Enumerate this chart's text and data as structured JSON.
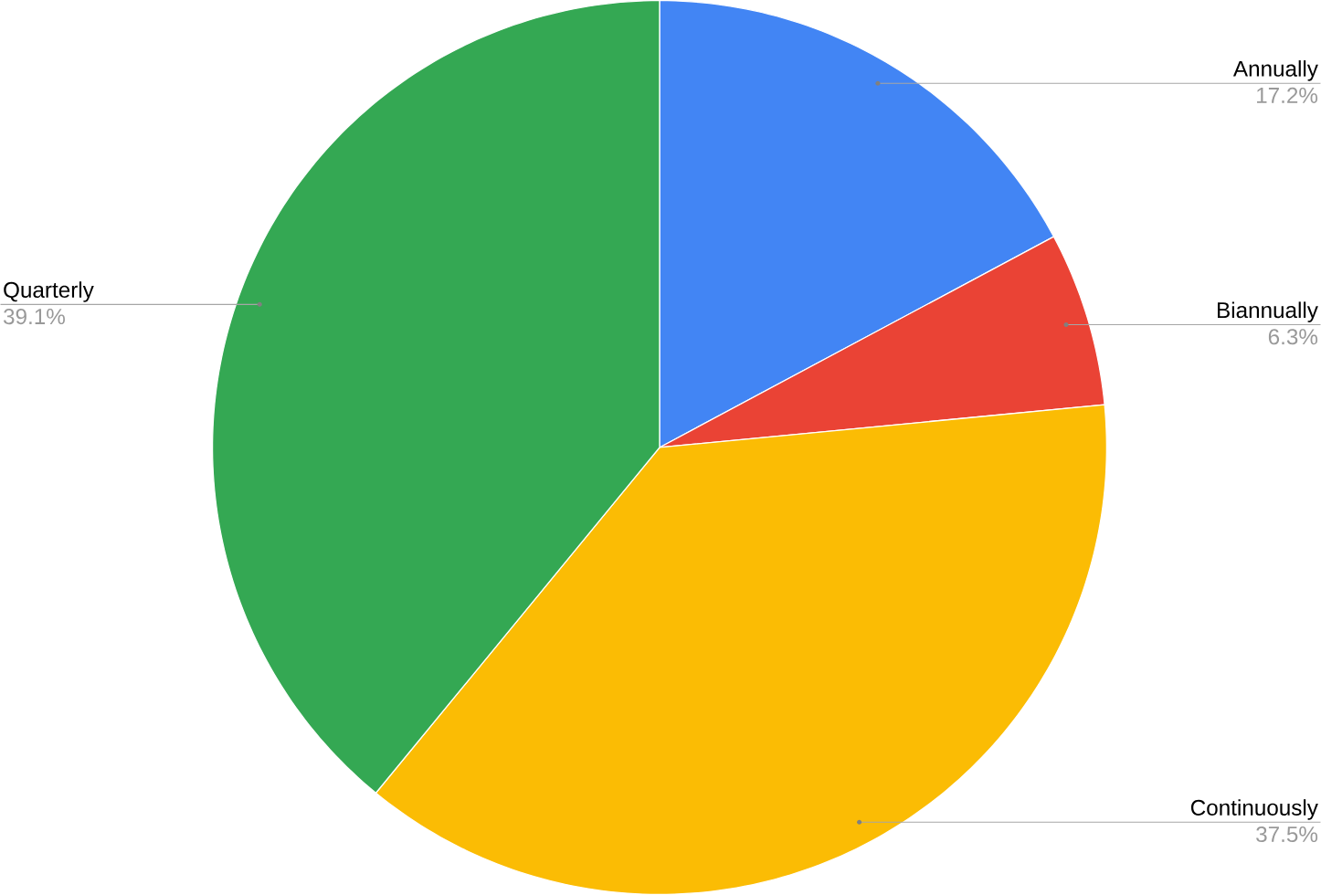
{
  "chart_data": {
    "type": "pie",
    "categories": [
      "Annually",
      "Biannually",
      "Continuously",
      "Quarterly"
    ],
    "values": [
      17.2,
      6.3,
      37.5,
      39.1
    ],
    "value_labels": [
      "17.2%",
      "6.3%",
      "37.5%",
      "39.1%"
    ],
    "colors": [
      "#4285f4",
      "#ea4335",
      "#fbbc04",
      "#34a853"
    ]
  }
}
